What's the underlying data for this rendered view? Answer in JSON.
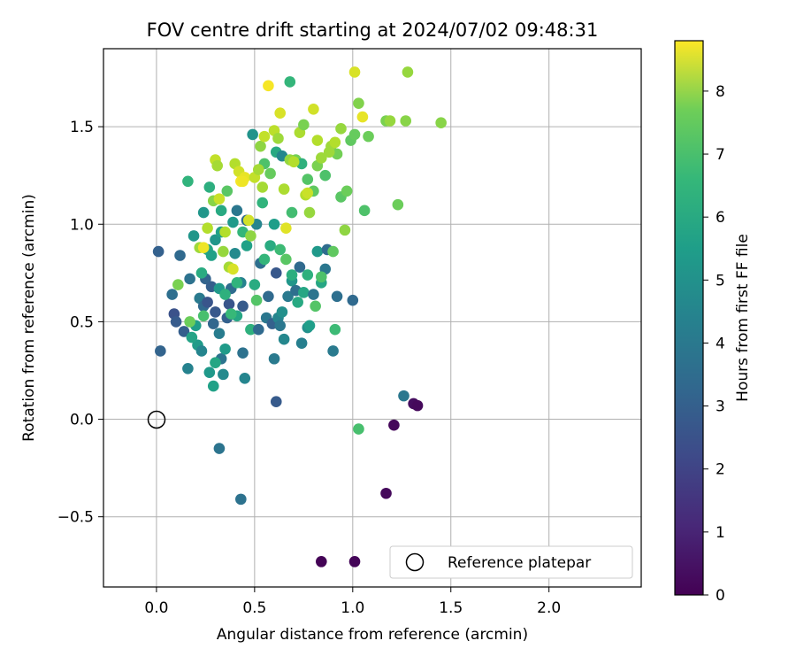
{
  "chart_data": {
    "type": "scatter",
    "title": "FOV centre drift starting at 2024/07/02 09:48:31",
    "xlabel": "Angular distance from reference (arcmin)",
    "ylabel": "Rotation from reference (arcmin)",
    "xlim": [
      -0.27,
      2.47
    ],
    "ylim": [
      -0.86,
      1.9
    ],
    "x_ticks": [
      0.0,
      0.5,
      1.0,
      1.5,
      2.0
    ],
    "x_tick_labels": [
      "0.0",
      "0.5",
      "1.0",
      "1.5",
      "2.0"
    ],
    "y_ticks": [
      -0.5,
      0.0,
      0.5,
      1.0,
      1.5
    ],
    "y_tick_labels": [
      "−0.5",
      "0.0",
      "0.5",
      "1.0",
      "1.5"
    ],
    "grid": true,
    "legend": {
      "position": "lower-right",
      "entries": [
        "Reference platepar"
      ]
    },
    "colorbar": {
      "label": "Hours from first FF file",
      "colormap": "viridis",
      "range": [
        0,
        8.8
      ],
      "ticks": [
        0,
        1,
        2,
        3,
        4,
        5,
        6,
        7,
        8
      ],
      "tick_labels": [
        "0",
        "1",
        "2",
        "3",
        "4",
        "5",
        "6",
        "7",
        "8"
      ]
    },
    "reference_point": {
      "x": 0.0,
      "y": 0.0,
      "name": "Reference platepar"
    },
    "points": [
      [
        0.84,
        -0.73,
        0.05
      ],
      [
        1.01,
        -0.73,
        0.1
      ],
      [
        1.17,
        -0.38,
        0.2
      ],
      [
        1.21,
        -0.03,
        0.15
      ],
      [
        1.31,
        0.08,
        0.3
      ],
      [
        1.33,
        0.07,
        0.2
      ],
      [
        1.26,
        0.12,
        3.5
      ],
      [
        0.43,
        -0.41,
        3.3
      ],
      [
        0.32,
        -0.15,
        3.4
      ],
      [
        0.02,
        0.35,
        2.8
      ],
      [
        0.01,
        0.86,
        2.7
      ],
      [
        0.61,
        0.09,
        2.5
      ],
      [
        1.03,
        -0.05,
        6.2
      ],
      [
        0.09,
        0.54,
        2.2
      ],
      [
        0.12,
        0.84,
        3.0
      ],
      [
        0.08,
        0.64,
        3.2
      ],
      [
        0.1,
        0.5,
        2.5
      ],
      [
        0.14,
        0.45,
        2.6
      ],
      [
        0.16,
        0.26,
        3.9
      ],
      [
        0.19,
        0.94,
        4.6
      ],
      [
        0.17,
        0.72,
        3.3
      ],
      [
        0.21,
        0.38,
        4.8
      ],
      [
        0.23,
        0.35,
        4.0
      ],
      [
        0.22,
        0.62,
        3.6
      ],
      [
        0.24,
        0.58,
        3.0
      ],
      [
        0.25,
        0.72,
        2.8
      ],
      [
        0.26,
        0.6,
        2.3
      ],
      [
        0.28,
        0.68,
        2.6
      ],
      [
        0.3,
        0.55,
        2.4
      ],
      [
        0.29,
        0.49,
        2.9
      ],
      [
        0.32,
        0.44,
        3.7
      ],
      [
        0.33,
        0.31,
        3.4
      ],
      [
        0.34,
        0.23,
        4.2
      ],
      [
        0.35,
        0.36,
        4.8
      ],
      [
        0.36,
        0.52,
        2.7
      ],
      [
        0.38,
        0.67,
        3.1
      ],
      [
        0.37,
        0.59,
        2.3
      ],
      [
        0.4,
        0.85,
        4.2
      ],
      [
        0.41,
        0.53,
        5.2
      ],
      [
        0.43,
        0.7,
        3.9
      ],
      [
        0.44,
        0.34,
        3.3
      ],
      [
        0.45,
        0.21,
        4.0
      ],
      [
        0.44,
        0.58,
        2.5
      ],
      [
        0.48,
        0.46,
        5.6
      ],
      [
        0.52,
        0.46,
        3.0
      ],
      [
        0.53,
        0.8,
        3.2
      ],
      [
        0.56,
        0.52,
        3.5
      ],
      [
        0.57,
        0.63,
        3.0
      ],
      [
        0.59,
        0.49,
        2.7
      ],
      [
        0.6,
        0.31,
        3.6
      ],
      [
        0.61,
        0.75,
        2.4
      ],
      [
        0.62,
        0.52,
        4.0
      ],
      [
        0.63,
        0.48,
        3.5
      ],
      [
        0.64,
        0.55,
        4.4
      ],
      [
        0.65,
        0.41,
        4.1
      ],
      [
        0.67,
        0.63,
        3.6
      ],
      [
        0.69,
        0.71,
        4.6
      ],
      [
        0.71,
        0.66,
        3.2
      ],
      [
        0.73,
        0.78,
        3.0
      ],
      [
        0.74,
        0.39,
        3.8
      ],
      [
        0.75,
        0.65,
        5.2
      ],
      [
        0.77,
        0.47,
        4.4
      ],
      [
        0.78,
        0.48,
        4.9
      ],
      [
        0.8,
        0.64,
        3.4
      ],
      [
        0.82,
        0.86,
        4.7
      ],
      [
        0.84,
        0.7,
        5.2
      ],
      [
        0.86,
        0.77,
        3.5
      ],
      [
        0.87,
        0.87,
        3.1
      ],
      [
        0.9,
        0.35,
        3.6
      ],
      [
        0.92,
        0.63,
        3.2
      ],
      [
        0.91,
        0.46,
        6.0
      ],
      [
        1.0,
        0.61,
        3.0
      ],
      [
        0.29,
        0.17,
        5.0
      ],
      [
        0.3,
        0.29,
        5.2
      ],
      [
        0.27,
        0.24,
        4.7
      ],
      [
        0.2,
        0.48,
        4.9
      ],
      [
        0.18,
        0.42,
        5.1
      ],
      [
        0.24,
        0.53,
        6.2
      ],
      [
        0.23,
        0.75,
        5.4
      ],
      [
        0.26,
        0.87,
        5.2
      ],
      [
        0.28,
        0.84,
        5.0
      ],
      [
        0.3,
        0.92,
        4.6
      ],
      [
        0.33,
        0.96,
        5.0
      ],
      [
        0.32,
        0.67,
        4.7
      ],
      [
        0.35,
        0.64,
        5.6
      ],
      [
        0.38,
        0.54,
        5.9
      ],
      [
        0.41,
        0.7,
        5.7
      ],
      [
        0.46,
        0.89,
        5.0
      ],
      [
        0.5,
        0.69,
        5.4
      ],
      [
        0.51,
        0.61,
        6.4
      ],
      [
        0.55,
        0.82,
        5.8
      ],
      [
        0.58,
        0.89,
        5.4
      ],
      [
        0.63,
        0.87,
        6.0
      ],
      [
        0.66,
        0.82,
        6.5
      ],
      [
        0.69,
        0.74,
        5.5
      ],
      [
        0.72,
        0.6,
        5.3
      ],
      [
        0.77,
        0.74,
        5.6
      ],
      [
        0.81,
        0.58,
        6.4
      ],
      [
        0.84,
        0.73,
        6.3
      ],
      [
        0.9,
        0.86,
        6.6
      ],
      [
        0.24,
        1.06,
        4.6
      ],
      [
        0.27,
        1.19,
        5.5
      ],
      [
        0.16,
        1.22,
        5.7
      ],
      [
        0.33,
        1.07,
        5.3
      ],
      [
        0.36,
        1.17,
        6.5
      ],
      [
        0.39,
        1.01,
        4.7
      ],
      [
        0.41,
        1.07,
        3.5
      ],
      [
        0.44,
        0.96,
        5.8
      ],
      [
        0.46,
        1.02,
        3.0
      ],
      [
        0.49,
        1.46,
        4.5
      ],
      [
        0.51,
        1.0,
        4.0
      ],
      [
        0.54,
        1.11,
        5.7
      ],
      [
        0.55,
        1.31,
        6.3
      ],
      [
        0.58,
        1.26,
        6.7
      ],
      [
        0.6,
        1.0,
        4.9
      ],
      [
        0.61,
        1.37,
        5.3
      ],
      [
        0.64,
        1.35,
        4.1
      ],
      [
        0.68,
        1.73,
        5.8
      ],
      [
        0.69,
        1.06,
        6.1
      ],
      [
        0.71,
        1.33,
        6.9
      ],
      [
        0.74,
        1.31,
        5.6
      ],
      [
        0.77,
        1.23,
        6.4
      ],
      [
        0.8,
        1.17,
        6.6
      ],
      [
        0.82,
        1.3,
        7.0
      ],
      [
        0.86,
        1.25,
        6.3
      ],
      [
        0.89,
        1.4,
        7.5
      ],
      [
        0.92,
        1.36,
        6.9
      ],
      [
        0.94,
        1.14,
        6.5
      ],
      [
        0.97,
        1.17,
        6.8
      ],
      [
        0.96,
        0.97,
        7.3
      ],
      [
        0.99,
        1.43,
        6.6
      ],
      [
        1.01,
        1.46,
        6.7
      ],
      [
        1.03,
        1.62,
        7.1
      ],
      [
        1.06,
        1.07,
        6.3
      ],
      [
        1.08,
        1.45,
        6.8
      ],
      [
        1.17,
        1.53,
        7.0
      ],
      [
        1.19,
        1.53,
        7.4
      ],
      [
        1.23,
        1.1,
        6.8
      ],
      [
        1.27,
        1.53,
        7.2
      ],
      [
        1.28,
        1.78,
        7.4
      ],
      [
        1.45,
        1.52,
        7.2
      ],
      [
        0.11,
        0.69,
        7.0
      ],
      [
        0.17,
        0.5,
        6.8
      ],
      [
        0.22,
        0.88,
        7.5
      ],
      [
        0.24,
        0.88,
        8.6
      ],
      [
        0.26,
        0.98,
        7.8
      ],
      [
        0.29,
        1.12,
        7.2
      ],
      [
        0.3,
        1.33,
        8.0
      ],
      [
        0.31,
        1.3,
        7.6
      ],
      [
        0.32,
        1.13,
        8.1
      ],
      [
        0.34,
        0.86,
        7.4
      ],
      [
        0.35,
        0.96,
        7.8
      ],
      [
        0.37,
        0.78,
        7.6
      ],
      [
        0.39,
        0.77,
        8.3
      ],
      [
        0.4,
        1.31,
        7.8
      ],
      [
        0.42,
        1.27,
        8.2
      ],
      [
        0.43,
        1.22,
        8.7
      ],
      [
        0.45,
        1.24,
        8.5
      ],
      [
        0.47,
        1.02,
        8.2
      ],
      [
        0.48,
        0.94,
        7.3
      ],
      [
        0.5,
        1.24,
        8.0
      ],
      [
        0.52,
        1.28,
        7.6
      ],
      [
        0.53,
        1.4,
        7.3
      ],
      [
        0.55,
        1.45,
        8.0
      ],
      [
        0.57,
        1.71,
        8.7
      ],
      [
        0.6,
        1.48,
        7.9
      ],
      [
        0.62,
        1.44,
        7.5
      ],
      [
        0.63,
        1.57,
        8.3
      ],
      [
        0.65,
        1.18,
        7.7
      ],
      [
        0.68,
        1.33,
        7.4
      ],
      [
        0.7,
        1.32,
        7.8
      ],
      [
        0.73,
        1.47,
        7.7
      ],
      [
        0.75,
        1.51,
        7.0
      ],
      [
        0.76,
        1.15,
        7.8
      ],
      [
        0.78,
        1.06,
        7.4
      ],
      [
        0.8,
        1.59,
        8.2
      ],
      [
        0.82,
        1.43,
        7.8
      ],
      [
        0.84,
        1.34,
        7.5
      ],
      [
        0.88,
        1.37,
        7.5
      ],
      [
        0.91,
        1.42,
        7.8
      ],
      [
        0.94,
        1.49,
        7.4
      ],
      [
        1.01,
        1.78,
        8.3
      ],
      [
        1.05,
        1.55,
        8.5
      ],
      [
        0.44,
        1.22,
        8.6
      ],
      [
        0.54,
        1.19,
        7.6
      ],
      [
        0.66,
        0.98,
        8.4
      ],
      [
        0.77,
        1.16,
        8.1
      ]
    ]
  }
}
